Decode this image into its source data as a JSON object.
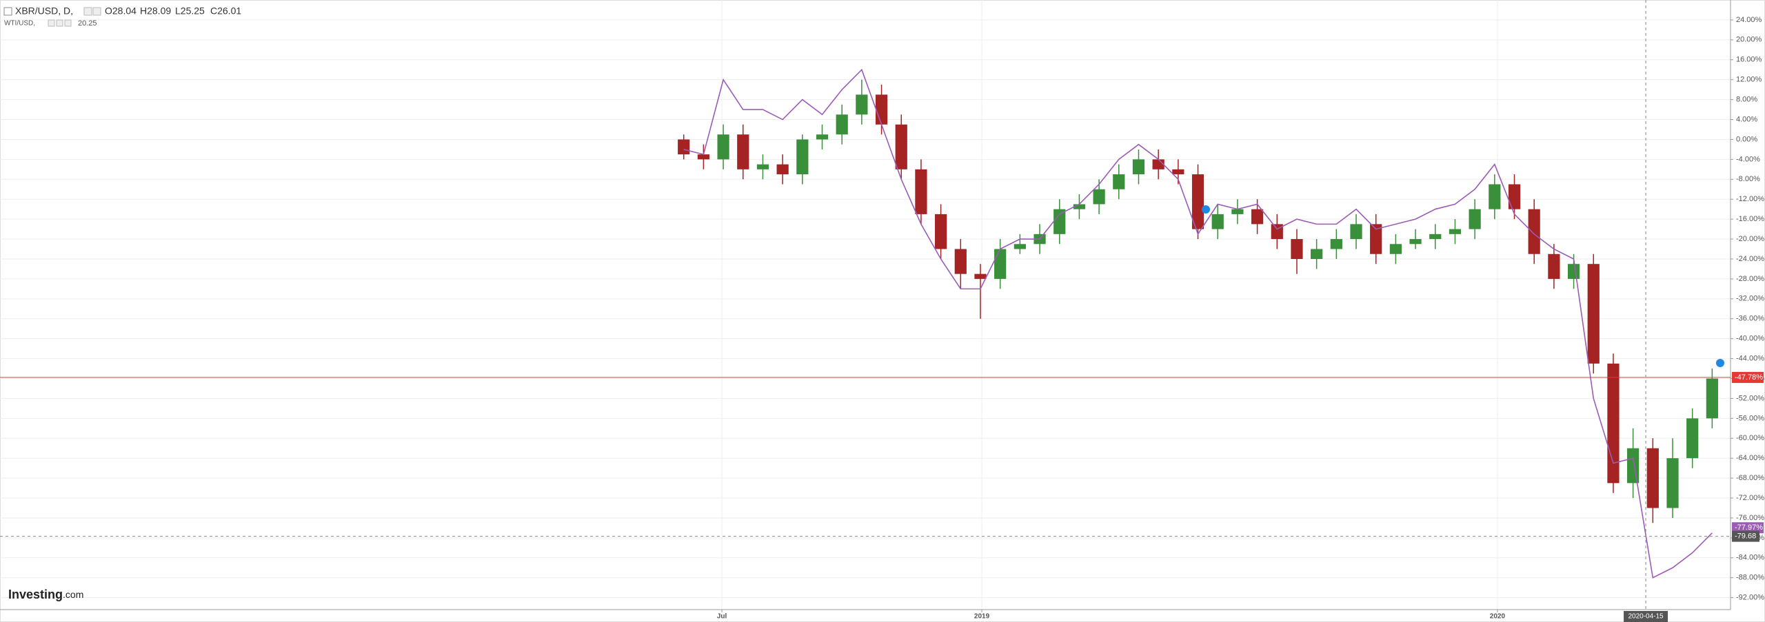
{
  "chart_data": {
    "type": "candlestick",
    "header": {
      "open": "O28.04",
      "high": "H28.09",
      "low": "L25.25",
      "close": "C26.01"
    },
    "logo": {
      "main": "Investing",
      "suffix": ".com"
    },
    "x": [
      "2018-06-04",
      "2018-06-18",
      "2018-07-02",
      "2018-07-16",
      "2018-07-30",
      "2018-08-13",
      "2018-08-27",
      "2018-09-10",
      "2018-09-24",
      "2018-10-08",
      "2018-10-22",
      "2018-11-05",
      "2018-11-19",
      "2018-12-03",
      "2018-12-17",
      "2018-12-31",
      "2019-01-14",
      "2019-01-28",
      "2019-02-11",
      "2019-02-25",
      "2019-03-11",
      "2019-03-25",
      "2019-04-08",
      "2019-04-22",
      "2019-05-06",
      "2019-05-20",
      "2019-06-03",
      "2019-06-17",
      "2019-07-01",
      "2019-07-15",
      "2019-07-29",
      "2019-08-12",
      "2019-08-26",
      "2019-09-09",
      "2019-09-23",
      "2019-10-07",
      "2019-10-21",
      "2019-11-04",
      "2019-11-18",
      "2019-12-02",
      "2019-12-16",
      "2019-12-30",
      "2020-01-13",
      "2020-01-27",
      "2020-02-10",
      "2020-02-24",
      "2020-03-09",
      "2020-03-23",
      "2020-04-06",
      "2020-04-20",
      "2020-05-04",
      "2020-05-18",
      "2020-06-01"
    ],
    "series": [
      {
        "name": "XBR/USD, D,",
        "type": "candlestick",
        "up_color": "#3a8f3a",
        "down_color": "#a52323",
        "open": [
          0,
          -3,
          -4,
          1,
          -6,
          -5,
          -7,
          0,
          1,
          5,
          9,
          3,
          -6,
          -15,
          -22,
          -27,
          -28,
          -22,
          -21,
          -19,
          -14,
          -13,
          -10,
          -7,
          -4,
          -6,
          -7,
          -18,
          -15,
          -14,
          -17,
          -20,
          -24,
          -22,
          -20,
          -17,
          -23,
          -21,
          -20,
          -19,
          -18,
          -14,
          -9,
          -14,
          -23,
          -28,
          -25,
          -45,
          -69,
          -62,
          -74,
          -64,
          -56
        ],
        "high": [
          1,
          -1,
          3,
          3,
          -3,
          -3,
          1,
          3,
          7,
          12,
          11,
          5,
          -4,
          -13,
          -20,
          -25,
          -20,
          -19,
          -17,
          -12,
          -11,
          -8,
          -5,
          -2,
          -2,
          -4,
          -5,
          -13,
          -12,
          -12,
          -15,
          -18,
          -20,
          -18,
          -15,
          -15,
          -19,
          -18,
          -17,
          -16,
          -12,
          -7,
          -7,
          -12,
          -21,
          -23,
          -23,
          -43,
          -58,
          -60,
          -60,
          -54,
          -46
        ],
        "low": [
          -4,
          -6,
          -6,
          -8,
          -8,
          -9,
          -9,
          -2,
          -1,
          3,
          1,
          -8,
          -17,
          -24,
          -30,
          -36,
          -30,
          -23,
          -23,
          -21,
          -16,
          -15,
          -12,
          -9,
          -8,
          -9,
          -20,
          -20,
          -17,
          -19,
          -22,
          -27,
          -26,
          -24,
          -22,
          -25,
          -25,
          -22,
          -22,
          -21,
          -20,
          -16,
          -16,
          -25,
          -30,
          -30,
          -47,
          -71,
          -72,
          -77,
          -76,
          -66,
          -58
        ],
        "close": [
          -3,
          -4,
          1,
          -6,
          -5,
          -7,
          0,
          1,
          5,
          9,
          3,
          -6,
          -15,
          -22,
          -27,
          -28,
          -22,
          -21,
          -19,
          -14,
          -13,
          -10,
          -7,
          -4,
          -6,
          -7,
          -18,
          -15,
          -14,
          -17,
          -20,
          -24,
          -22,
          -20,
          -17,
          -23,
          -21,
          -20,
          -19,
          -18,
          -14,
          -9,
          -14,
          -23,
          -28,
          -25,
          -45,
          -69,
          -62,
          -74,
          -64,
          -56,
          -48
        ]
      },
      {
        "name": "WTI/USD,",
        "type": "line",
        "color": "#9c5bb5",
        "legend_value": "20.25",
        "values": [
          -2,
          -3,
          12,
          6,
          6,
          4,
          8,
          5,
          10,
          14,
          3,
          -8,
          -17,
          -24,
          -30,
          -30,
          -22,
          -20,
          -20,
          -15,
          -13,
          -9,
          -4,
          -1,
          -4,
          -8,
          -19,
          -13,
          -14,
          -13,
          -18,
          -16,
          -17,
          -17,
          -14,
          -18,
          -17,
          -16,
          -14,
          -13,
          -10,
          -5,
          -15,
          -19,
          -22,
          -24,
          -52,
          -65,
          -64,
          -88,
          -86,
          -83,
          -79
        ]
      }
    ],
    "price_line": {
      "value": -47.78,
      "label": "-47.78%",
      "color": "#e53935"
    },
    "line_tag": {
      "value": -77.97,
      "label": "-77.97%"
    },
    "crosshair": {
      "x": "2020-04-15",
      "y": -79.68
    },
    "xlim": [
      "2017-02-05",
      "2020-06-14"
    ],
    "xticks": [
      {
        "value": "2018-07-01",
        "label": "Jul"
      },
      {
        "value": "2019-01-01",
        "label": "2019"
      },
      {
        "value": "2020-01-01",
        "label": "2020"
      }
    ],
    "ylim": [
      -94.4,
      28
    ],
    "yticks": [
      {
        "value": 24,
        "label": "24.00%"
      },
      {
        "value": 20,
        "label": "20.00%"
      },
      {
        "value": 16,
        "label": "16.00%"
      },
      {
        "value": 12,
        "label": "12.00%"
      },
      {
        "value": 8,
        "label": "8.00%"
      },
      {
        "value": 4,
        "label": "4.00%"
      },
      {
        "value": 0,
        "label": "0.00%"
      },
      {
        "value": -4,
        "label": "-4.00%"
      },
      {
        "value": -8,
        "label": "-8.00%"
      },
      {
        "value": -12,
        "label": "-12.00%"
      },
      {
        "value": -16,
        "label": "-16.00%"
      },
      {
        "value": -20,
        "label": "-20.00%"
      },
      {
        "value": -24,
        "label": "-24.00%"
      },
      {
        "value": -28,
        "label": "-28.00%"
      },
      {
        "value": -32,
        "label": "-32.00%"
      },
      {
        "value": -36,
        "label": "-36.00%"
      },
      {
        "value": -40,
        "label": "-40.00%"
      },
      {
        "value": -44,
        "label": "-44.00%"
      },
      {
        "value": -48,
        "label": "-48.00%"
      },
      {
        "value": -52,
        "label": "-52.00%"
      },
      {
        "value": -56,
        "label": "-56.00%"
      },
      {
        "value": -60,
        "label": "-60.00%"
      },
      {
        "value": -64,
        "label": "-64.00%"
      },
      {
        "value": -68,
        "label": "-68.00%"
      },
      {
        "value": -72,
        "label": "-72.00%"
      },
      {
        "value": -76,
        "label": "-76.00%"
      },
      {
        "value": -80,
        "label": "-80.00%"
      },
      {
        "value": -84,
        "label": "-84.00%"
      },
      {
        "value": -88,
        "label": "-88.00%"
      },
      {
        "value": -92,
        "label": "-92.00%"
      }
    ],
    "grid": true
  }
}
